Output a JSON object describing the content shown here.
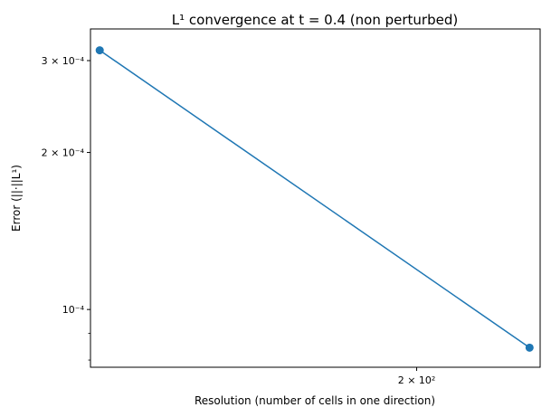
{
  "chart_data": {
    "type": "line",
    "title": "L¹ convergence at t = 0.4 (non perturbed)",
    "xlabel": "Resolution (number of cells in one direction)",
    "ylabel": "Error (||·||L¹)",
    "x_scale": "log",
    "y_scale": "log",
    "xlim": [
      98,
      262
    ],
    "ylim": [
      7.75e-05,
      0.000345
    ],
    "x_ticks": [
      {
        "value": 200,
        "label": "2 × 10²"
      }
    ],
    "y_ticks": [
      {
        "value": 0.0001,
        "label": "10⁻⁴"
      },
      {
        "value": 0.0002,
        "label": "2 × 10⁻⁴"
      },
      {
        "value": 0.0003,
        "label": "3 × 10⁻⁴"
      }
    ],
    "y_minor_ticks": [
      8e-05,
      9e-05,
      4e-05
    ],
    "series": [
      {
        "color": "#1f77b4",
        "marker": "circle",
        "x": [
          100,
          256
        ],
        "y": [
          0.000314,
          8.45e-05
        ]
      }
    ],
    "grid": false,
    "legend": "none"
  }
}
